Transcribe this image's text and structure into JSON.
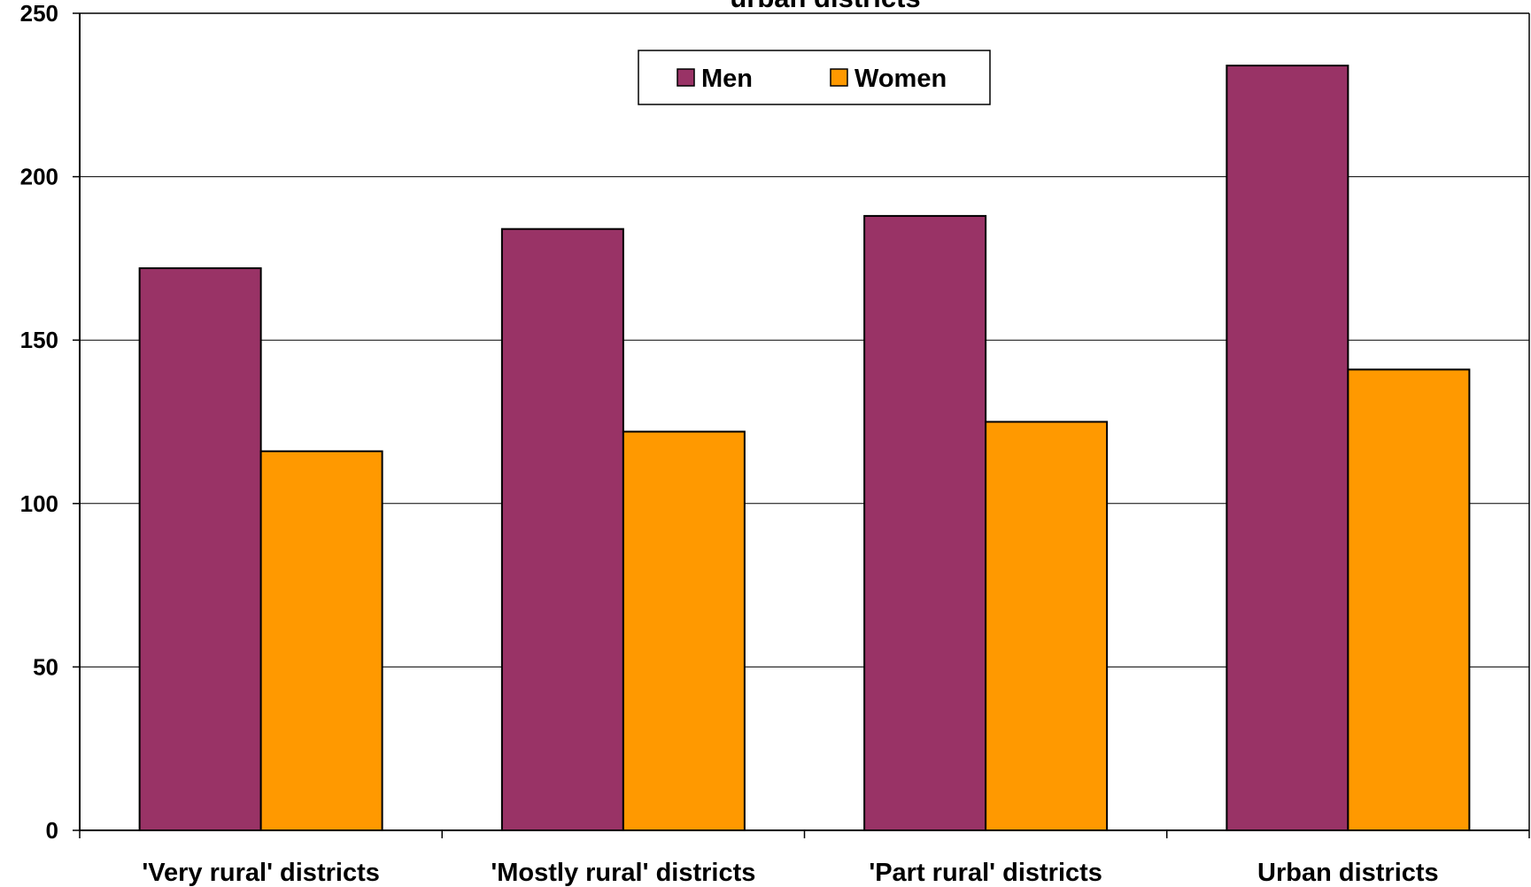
{
  "chart_data": {
    "type": "bar",
    "title": "urban districts",
    "xlabel": "",
    "ylabel": "",
    "categories": [
      "'Very rural' districts",
      "'Mostly rural' districts",
      "'Part rural' districts",
      "Urban districts"
    ],
    "series": [
      {
        "name": "Men",
        "color": "#993366",
        "values": [
          172,
          184,
          188,
          234
        ]
      },
      {
        "name": "Women",
        "color": "#FF9900",
        "values": [
          116,
          122,
          125,
          141
        ]
      }
    ],
    "ylim": [
      0,
      250
    ],
    "yticks": [
      0,
      50,
      100,
      150,
      200,
      250
    ],
    "grid": true,
    "legend_position": "top-center"
  }
}
